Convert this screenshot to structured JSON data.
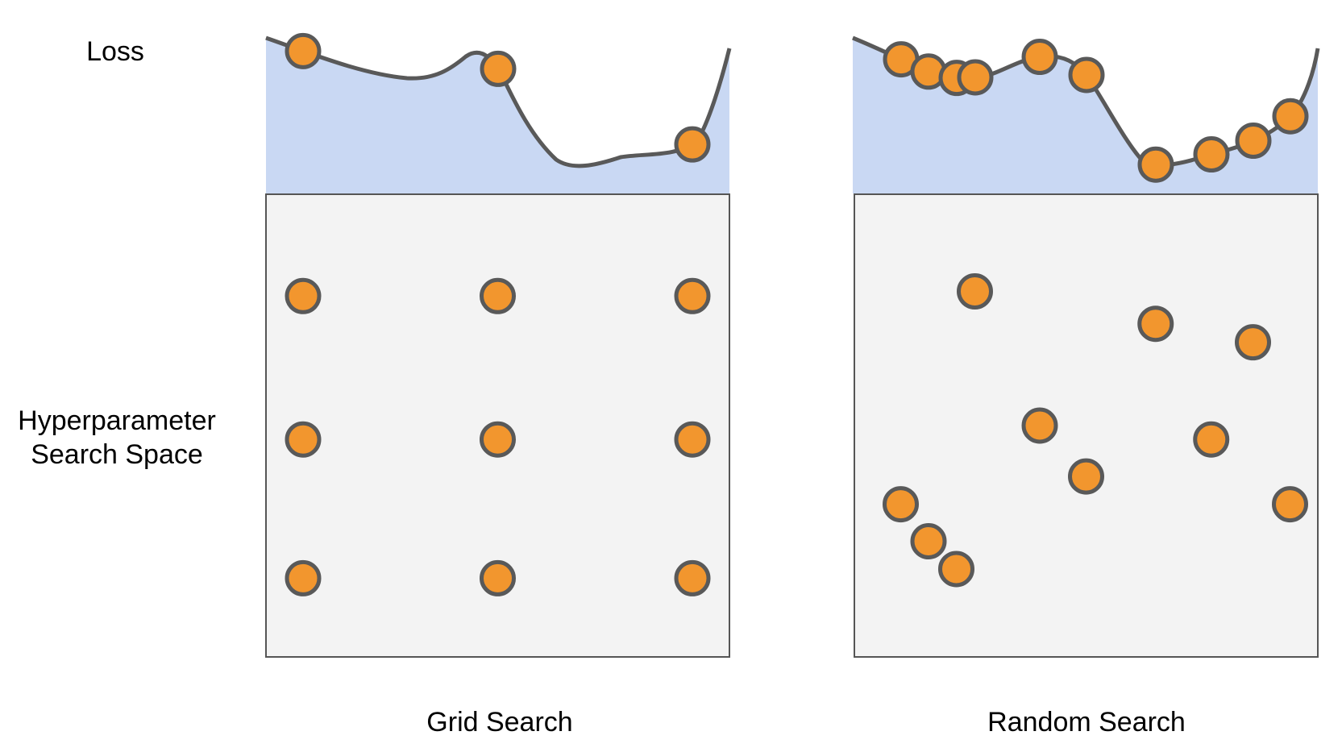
{
  "labels": {
    "loss": "Loss",
    "search_space_line1": "Hyperparameter",
    "search_space_line2": "Search Space",
    "grid_title": "Grid Search",
    "random_title": "Random Search"
  },
  "colors": {
    "loss_fill": "#c9d8f3",
    "space_fill": "#f3f3f3",
    "space_border": "#555555",
    "curve": "#595959",
    "point_fill": "#f2962e",
    "point_stroke": "#595959",
    "text": "#000000"
  },
  "panels": {
    "grid": {
      "points": [
        {
          "x": 0.08,
          "y": 0.22
        },
        {
          "x": 0.5,
          "y": 0.22
        },
        {
          "x": 0.92,
          "y": 0.22
        },
        {
          "x": 0.08,
          "y": 0.53
        },
        {
          "x": 0.5,
          "y": 0.53
        },
        {
          "x": 0.92,
          "y": 0.53
        },
        {
          "x": 0.08,
          "y": 0.83
        },
        {
          "x": 0.5,
          "y": 0.83
        },
        {
          "x": 0.92,
          "y": 0.83
        }
      ]
    },
    "random": {
      "points": [
        {
          "x": 0.26,
          "y": 0.21
        },
        {
          "x": 0.65,
          "y": 0.28
        },
        {
          "x": 0.86,
          "y": 0.32
        },
        {
          "x": 0.4,
          "y": 0.5
        },
        {
          "x": 0.77,
          "y": 0.53
        },
        {
          "x": 0.5,
          "y": 0.61
        },
        {
          "x": 0.1,
          "y": 0.67
        },
        {
          "x": 0.94,
          "y": 0.67
        },
        {
          "x": 0.16,
          "y": 0.75
        },
        {
          "x": 0.22,
          "y": 0.81
        }
      ]
    }
  }
}
